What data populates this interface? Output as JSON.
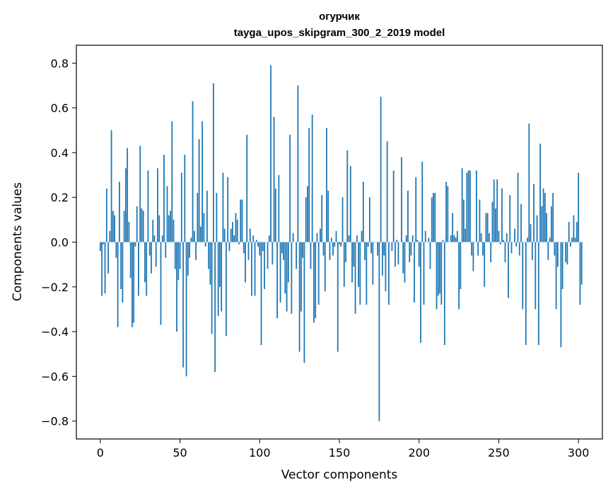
{
  "chart_data": {
    "type": "bar",
    "title": "огурчик",
    "subtitle": "tayga_upos_skipgram_300_2_2019 model",
    "xlabel": "Vector components",
    "ylabel": "Components values",
    "xlim": [
      -15,
      315
    ],
    "ylim": [
      -0.88,
      0.88
    ],
    "xticks": [
      0,
      50,
      100,
      150,
      200,
      250,
      300
    ],
    "xtick_labels": [
      "0",
      "50",
      "100",
      "150",
      "200",
      "250",
      "300"
    ],
    "yticks": [
      -0.8,
      -0.6,
      -0.4,
      -0.2,
      0.0,
      0.2,
      0.4,
      0.6,
      0.8
    ],
    "ytick_labels": [
      "−0.8",
      "−0.6",
      "−0.4",
      "−0.2",
      "0.0",
      "0.2",
      "0.4",
      "0.6",
      "0.8"
    ],
    "grid": false,
    "bar_color": "#1f77b4",
    "values": [
      -0.04,
      -0.24,
      -0.01,
      -0.23,
      0.24,
      -0.14,
      0.05,
      0.5,
      0.14,
      0.12,
      -0.07,
      -0.38,
      0.27,
      -0.21,
      -0.27,
      0.14,
      0.33,
      0.42,
      0.09,
      -0.16,
      -0.38,
      -0.36,
      -0.02,
      0.16,
      -0.24,
      0.43,
      0.15,
      0.14,
      -0.18,
      -0.24,
      0.32,
      -0.06,
      -0.14,
      0.1,
      0.03,
      -0.11,
      0.33,
      0.12,
      -0.37,
      0.03,
      0.39,
      -0.07,
      0.25,
      0.12,
      0.14,
      0.54,
      0.1,
      -0.12,
      -0.4,
      -0.17,
      -0.12,
      0.31,
      -0.56,
      0.39,
      -0.6,
      -0.15,
      -0.07,
      0.02,
      0.63,
      0.05,
      -0.08,
      0.22,
      0.46,
      0.07,
      0.54,
      0.13,
      -0.02,
      0.23,
      -0.12,
      -0.19,
      -0.41,
      0.71,
      -0.58,
      0.22,
      -0.33,
      -0.2,
      -0.31,
      0.31,
      0.06,
      -0.42,
      0.29,
      -0.04,
      0.06,
      0.09,
      0.03,
      0.13,
      0.1,
      -0.01,
      0.19,
      0.19,
      -0.05,
      -0.18,
      0.48,
      -0.08,
      0.06,
      -0.24,
      0.03,
      -0.24,
      0.01,
      -0.02,
      -0.06,
      -0.46,
      -0.04,
      -0.21,
      0.0,
      -0.12,
      0.03,
      0.79,
      -0.1,
      0.56,
      0.24,
      -0.34,
      0.3,
      -0.27,
      -0.05,
      -0.08,
      -0.23,
      -0.31,
      -0.18,
      0.48,
      -0.32,
      0.04,
      0.0,
      -0.12,
      0.7,
      -0.49,
      -0.31,
      -0.07,
      -0.54,
      0.2,
      0.25,
      0.51,
      -0.12,
      0.57,
      -0.36,
      -0.34,
      0.04,
      -0.28,
      0.06,
      0.21,
      -0.06,
      -0.22,
      0.51,
      0.23,
      -0.08,
      0.02,
      -0.06,
      -0.02,
      0.05,
      -0.49,
      -0.01,
      -0.02,
      0.2,
      -0.2,
      -0.09,
      0.41,
      0.03,
      0.34,
      -0.18,
      -0.11,
      -0.32,
      0.03,
      -0.2,
      -0.28,
      0.05,
      0.27,
      -0.08,
      -0.28,
      -0.02,
      0.2,
      -0.05,
      -0.19,
      0.0,
      0.0,
      -0.06,
      -0.8,
      0.65,
      -0.15,
      -0.06,
      -0.22,
      0.45,
      -0.28,
      0.0,
      -0.04,
      0.32,
      -0.11,
      0.01,
      -0.1,
      0.0,
      0.38,
      -0.14,
      -0.18,
      0.03,
      0.23,
      -0.09,
      -0.06,
      0.03,
      -0.27,
      0.29,
      0.01,
      -0.11,
      -0.45,
      0.36,
      -0.28,
      0.05,
      0.0,
      0.02,
      -0.12,
      0.2,
      0.22,
      0.22,
      -0.3,
      -0.24,
      -0.23,
      -0.28,
      0.01,
      -0.46,
      0.27,
      0.25,
      0.0,
      0.03,
      0.13,
      0.03,
      0.02,
      0.05,
      -0.3,
      -0.21,
      0.33,
      0.19,
      0.06,
      0.31,
      0.32,
      0.32,
      -0.06,
      -0.13,
      0.0,
      0.32,
      -0.06,
      0.19,
      0.04,
      -0.06,
      -0.2,
      0.13,
      0.13,
      0.04,
      -0.09,
      0.18,
      0.28,
      0.15,
      0.28,
      0.05,
      -0.01,
      0.24,
      0.01,
      -0.09,
      0.04,
      -0.25,
      0.21,
      -0.05,
      0.0,
      0.06,
      -0.02,
      0.31,
      -0.06,
      0.17,
      -0.3,
      0.0,
      -0.46,
      0.02,
      0.53,
      0.08,
      -0.08,
      0.26,
      -0.3,
      0.12,
      -0.46,
      0.44,
      0.16,
      0.24,
      0.22,
      0.13,
      -0.08,
      0.02,
      0.16,
      0.22,
      -0.06,
      -0.3,
      -0.11,
      0.0,
      -0.47,
      -0.21,
      0.0,
      -0.09,
      -0.1,
      0.09,
      -0.02,
      0.02,
      0.12,
      0.02,
      0.09,
      0.31,
      -0.28,
      -0.19
    ]
  }
}
